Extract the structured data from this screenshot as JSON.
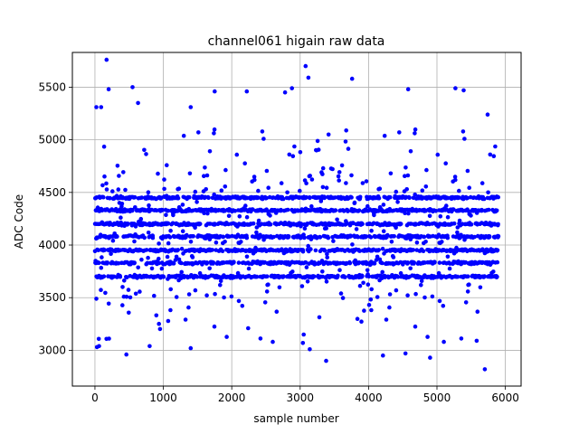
{
  "chart_data": {
    "type": "scatter",
    "title": "channel061 higain raw data",
    "xlabel": "sample number",
    "ylabel": "ADC Code",
    "xlim": [
      -330,
      6230
    ],
    "ylim": [
      2660,
      5830
    ],
    "x_ticks": [
      0,
      1000,
      2000,
      3000,
      4000,
      5000,
      6000
    ],
    "y_ticks": [
      3000,
      3500,
      4000,
      4500,
      5000,
      5500
    ],
    "x_tick_labels": [
      "0",
      "1000",
      "2000",
      "3000",
      "4000",
      "5000",
      "6000"
    ],
    "y_tick_labels": [
      "3000",
      "3500",
      "4000",
      "4500",
      "5000",
      "5500"
    ],
    "grid": true,
    "marker": "circle",
    "color": "#0000ff",
    "num_samples": 5900,
    "band_levels": [
      3700,
      3830,
      3950,
      4080,
      4200,
      4330,
      4450
    ],
    "notable_points": [
      {
        "x": 170,
        "y": 5760
      },
      {
        "x": 3080,
        "y": 5700
      },
      {
        "x": 3120,
        "y": 5590
      },
      {
        "x": 3760,
        "y": 5580
      },
      {
        "x": 550,
        "y": 5500
      },
      {
        "x": 5270,
        "y": 5490
      },
      {
        "x": 4580,
        "y": 5480
      },
      {
        "x": 5390,
        "y": 5470
      },
      {
        "x": 200,
        "y": 5480
      },
      {
        "x": 1750,
        "y": 5460
      },
      {
        "x": 2220,
        "y": 5460
      },
      {
        "x": 2880,
        "y": 5490
      },
      {
        "x": 2780,
        "y": 5450
      },
      {
        "x": 20,
        "y": 5310
      },
      {
        "x": 90,
        "y": 5310
      },
      {
        "x": 630,
        "y": 5350
      },
      {
        "x": 1400,
        "y": 5310
      },
      {
        "x": 5740,
        "y": 5240
      },
      {
        "x": 30,
        "y": 3030
      },
      {
        "x": 60,
        "y": 3040
      },
      {
        "x": 460,
        "y": 2960
      },
      {
        "x": 800,
        "y": 3040
      },
      {
        "x": 1400,
        "y": 3020
      },
      {
        "x": 3140,
        "y": 3010
      },
      {
        "x": 3380,
        "y": 2900
      },
      {
        "x": 3040,
        "y": 3070
      },
      {
        "x": 4210,
        "y": 2950
      },
      {
        "x": 4540,
        "y": 2970
      },
      {
        "x": 4900,
        "y": 2930
      },
      {
        "x": 5100,
        "y": 3080
      },
      {
        "x": 5700,
        "y": 2820
      },
      {
        "x": 5580,
        "y": 3090
      },
      {
        "x": 2600,
        "y": 3080
      },
      {
        "x": 2240,
        "y": 3210
      }
    ]
  }
}
